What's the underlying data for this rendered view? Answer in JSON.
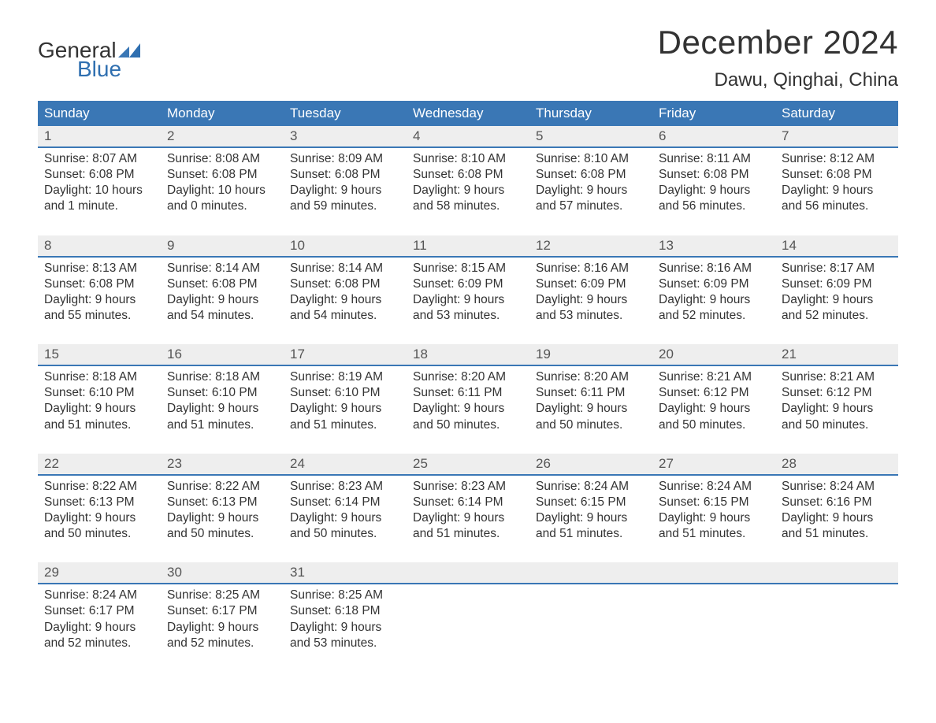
{
  "brand": {
    "word1": "General",
    "word2": "Blue",
    "text_color": "#333333",
    "accent_color": "#2f6fb0",
    "mark_color": "#3a77b5"
  },
  "header": {
    "month_title": "December 2024",
    "location": "Dawu, Qinghai, China",
    "title_fontsize": 42,
    "location_fontsize": 24,
    "title_color": "#333333"
  },
  "calendar": {
    "type": "table",
    "header_bg": "#3a77b5",
    "header_text_color": "#ffffff",
    "daynum_bg": "#eeeeee",
    "daynum_color": "#555555",
    "row_border_color": "#3a77b5",
    "cell_text_color": "#333333",
    "cell_fontsize": 15.5,
    "day_headers": [
      "Sunday",
      "Monday",
      "Tuesday",
      "Wednesday",
      "Thursday",
      "Friday",
      "Saturday"
    ],
    "weeks": [
      [
        {
          "day": "1",
          "sunrise": "Sunrise: 8:07 AM",
          "sunset": "Sunset: 6:08 PM",
          "dl1": "Daylight: 10 hours",
          "dl2": "and 1 minute."
        },
        {
          "day": "2",
          "sunrise": "Sunrise: 8:08 AM",
          "sunset": "Sunset: 6:08 PM",
          "dl1": "Daylight: 10 hours",
          "dl2": "and 0 minutes."
        },
        {
          "day": "3",
          "sunrise": "Sunrise: 8:09 AM",
          "sunset": "Sunset: 6:08 PM",
          "dl1": "Daylight: 9 hours",
          "dl2": "and 59 minutes."
        },
        {
          "day": "4",
          "sunrise": "Sunrise: 8:10 AM",
          "sunset": "Sunset: 6:08 PM",
          "dl1": "Daylight: 9 hours",
          "dl2": "and 58 minutes."
        },
        {
          "day": "5",
          "sunrise": "Sunrise: 8:10 AM",
          "sunset": "Sunset: 6:08 PM",
          "dl1": "Daylight: 9 hours",
          "dl2": "and 57 minutes."
        },
        {
          "day": "6",
          "sunrise": "Sunrise: 8:11 AM",
          "sunset": "Sunset: 6:08 PM",
          "dl1": "Daylight: 9 hours",
          "dl2": "and 56 minutes."
        },
        {
          "day": "7",
          "sunrise": "Sunrise: 8:12 AM",
          "sunset": "Sunset: 6:08 PM",
          "dl1": "Daylight: 9 hours",
          "dl2": "and 56 minutes."
        }
      ],
      [
        {
          "day": "8",
          "sunrise": "Sunrise: 8:13 AM",
          "sunset": "Sunset: 6:08 PM",
          "dl1": "Daylight: 9 hours",
          "dl2": "and 55 minutes."
        },
        {
          "day": "9",
          "sunrise": "Sunrise: 8:14 AM",
          "sunset": "Sunset: 6:08 PM",
          "dl1": "Daylight: 9 hours",
          "dl2": "and 54 minutes."
        },
        {
          "day": "10",
          "sunrise": "Sunrise: 8:14 AM",
          "sunset": "Sunset: 6:08 PM",
          "dl1": "Daylight: 9 hours",
          "dl2": "and 54 minutes."
        },
        {
          "day": "11",
          "sunrise": "Sunrise: 8:15 AM",
          "sunset": "Sunset: 6:09 PM",
          "dl1": "Daylight: 9 hours",
          "dl2": "and 53 minutes."
        },
        {
          "day": "12",
          "sunrise": "Sunrise: 8:16 AM",
          "sunset": "Sunset: 6:09 PM",
          "dl1": "Daylight: 9 hours",
          "dl2": "and 53 minutes."
        },
        {
          "day": "13",
          "sunrise": "Sunrise: 8:16 AM",
          "sunset": "Sunset: 6:09 PM",
          "dl1": "Daylight: 9 hours",
          "dl2": "and 52 minutes."
        },
        {
          "day": "14",
          "sunrise": "Sunrise: 8:17 AM",
          "sunset": "Sunset: 6:09 PM",
          "dl1": "Daylight: 9 hours",
          "dl2": "and 52 minutes."
        }
      ],
      [
        {
          "day": "15",
          "sunrise": "Sunrise: 8:18 AM",
          "sunset": "Sunset: 6:10 PM",
          "dl1": "Daylight: 9 hours",
          "dl2": "and 51 minutes."
        },
        {
          "day": "16",
          "sunrise": "Sunrise: 8:18 AM",
          "sunset": "Sunset: 6:10 PM",
          "dl1": "Daylight: 9 hours",
          "dl2": "and 51 minutes."
        },
        {
          "day": "17",
          "sunrise": "Sunrise: 8:19 AM",
          "sunset": "Sunset: 6:10 PM",
          "dl1": "Daylight: 9 hours",
          "dl2": "and 51 minutes."
        },
        {
          "day": "18",
          "sunrise": "Sunrise: 8:20 AM",
          "sunset": "Sunset: 6:11 PM",
          "dl1": "Daylight: 9 hours",
          "dl2": "and 50 minutes."
        },
        {
          "day": "19",
          "sunrise": "Sunrise: 8:20 AM",
          "sunset": "Sunset: 6:11 PM",
          "dl1": "Daylight: 9 hours",
          "dl2": "and 50 minutes."
        },
        {
          "day": "20",
          "sunrise": "Sunrise: 8:21 AM",
          "sunset": "Sunset: 6:12 PM",
          "dl1": "Daylight: 9 hours",
          "dl2": "and 50 minutes."
        },
        {
          "day": "21",
          "sunrise": "Sunrise: 8:21 AM",
          "sunset": "Sunset: 6:12 PM",
          "dl1": "Daylight: 9 hours",
          "dl2": "and 50 minutes."
        }
      ],
      [
        {
          "day": "22",
          "sunrise": "Sunrise: 8:22 AM",
          "sunset": "Sunset: 6:13 PM",
          "dl1": "Daylight: 9 hours",
          "dl2": "and 50 minutes."
        },
        {
          "day": "23",
          "sunrise": "Sunrise: 8:22 AM",
          "sunset": "Sunset: 6:13 PM",
          "dl1": "Daylight: 9 hours",
          "dl2": "and 50 minutes."
        },
        {
          "day": "24",
          "sunrise": "Sunrise: 8:23 AM",
          "sunset": "Sunset: 6:14 PM",
          "dl1": "Daylight: 9 hours",
          "dl2": "and 50 minutes."
        },
        {
          "day": "25",
          "sunrise": "Sunrise: 8:23 AM",
          "sunset": "Sunset: 6:14 PM",
          "dl1": "Daylight: 9 hours",
          "dl2": "and 51 minutes."
        },
        {
          "day": "26",
          "sunrise": "Sunrise: 8:24 AM",
          "sunset": "Sunset: 6:15 PM",
          "dl1": "Daylight: 9 hours",
          "dl2": "and 51 minutes."
        },
        {
          "day": "27",
          "sunrise": "Sunrise: 8:24 AM",
          "sunset": "Sunset: 6:15 PM",
          "dl1": "Daylight: 9 hours",
          "dl2": "and 51 minutes."
        },
        {
          "day": "28",
          "sunrise": "Sunrise: 8:24 AM",
          "sunset": "Sunset: 6:16 PM",
          "dl1": "Daylight: 9 hours",
          "dl2": "and 51 minutes."
        }
      ],
      [
        {
          "day": "29",
          "sunrise": "Sunrise: 8:24 AM",
          "sunset": "Sunset: 6:17 PM",
          "dl1": "Daylight: 9 hours",
          "dl2": "and 52 minutes."
        },
        {
          "day": "30",
          "sunrise": "Sunrise: 8:25 AM",
          "sunset": "Sunset: 6:17 PM",
          "dl1": "Daylight: 9 hours",
          "dl2": "and 52 minutes."
        },
        {
          "day": "31",
          "sunrise": "Sunrise: 8:25 AM",
          "sunset": "Sunset: 6:18 PM",
          "dl1": "Daylight: 9 hours",
          "dl2": "and 53 minutes."
        },
        null,
        null,
        null,
        null
      ]
    ]
  }
}
